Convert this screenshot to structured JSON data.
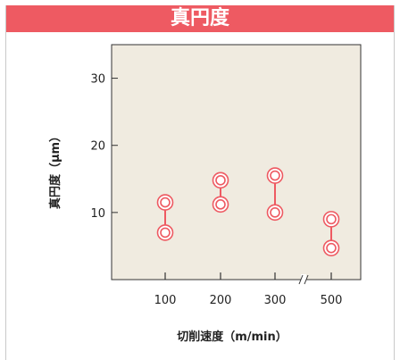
{
  "title": "真円度",
  "chart_data": {
    "type": "range",
    "title": "真円度",
    "xlabel": "切削速度（m/min）",
    "ylabel": "真円度（μm）",
    "categories": [
      "100",
      "200",
      "300",
      "500"
    ],
    "series": [
      {
        "low": [
          7.0,
          11.2,
          10.0,
          4.7
        ],
        "high": [
          11.5,
          14.8,
          15.5,
          9.0
        ]
      }
    ],
    "yticks": [
      10,
      20,
      30
    ],
    "ylim": [
      0,
      35
    ],
    "axis_break": "300-500",
    "colors": {
      "background": "#f0ebe0",
      "marker": "#ee5a62",
      "title_bar": "#ee5a62"
    }
  }
}
